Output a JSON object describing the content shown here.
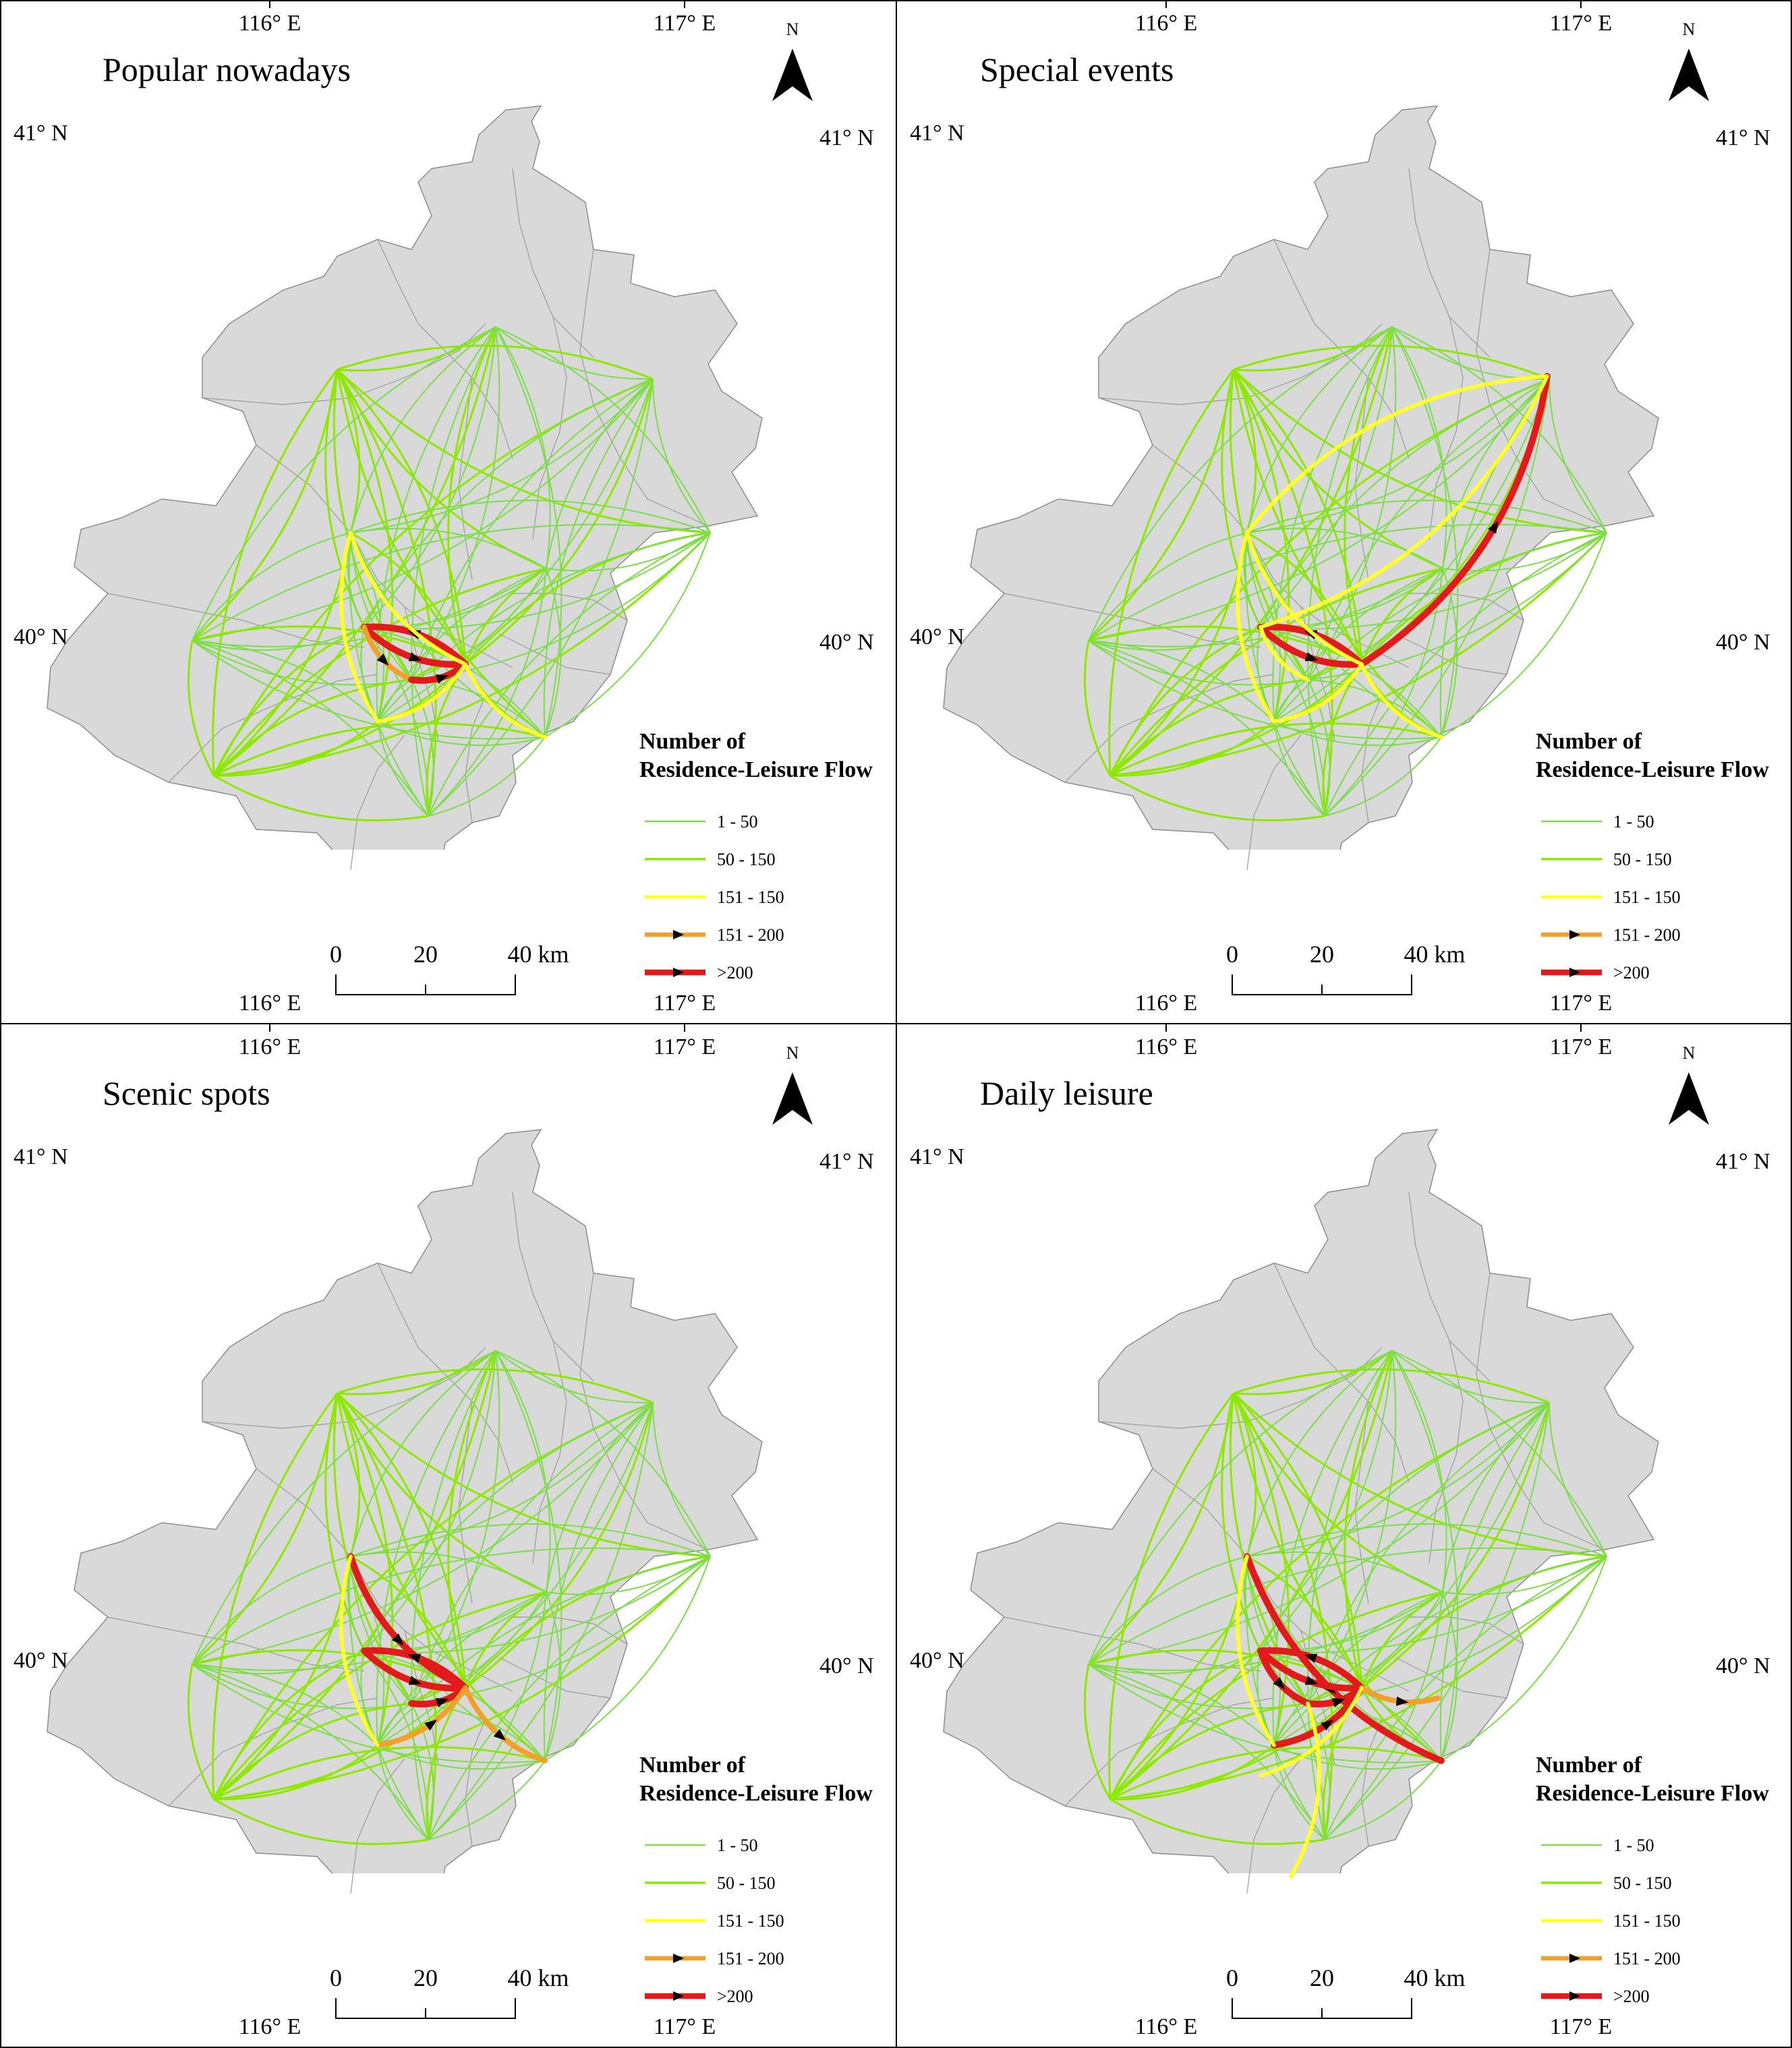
{
  "panels": [
    {
      "title": "Popular nowadays",
      "lon_labels": {
        "left": "116° E",
        "right": "117° E"
      },
      "lat_labels": {
        "top": "41° N",
        "middle": "40° N"
      },
      "north_label": "N",
      "legend_title_line1": "Number of",
      "legend_title_line2": "Residence-Leisure Flow",
      "legend_items": [
        "1 - 50",
        "50 - 150",
        "151 - 150",
        "151 - 200",
        ">200"
      ],
      "scale": {
        "t0": "0",
        "t1": "20",
        "t2": "40 km"
      },
      "major_flows": [
        {
          "from": "A",
          "to": "C",
          "class": 5
        },
        {
          "from": "C",
          "to": "A",
          "class": 5
        },
        {
          "from": "A",
          "to": "D",
          "class": 4
        },
        {
          "from": "D",
          "to": "C",
          "class": 5
        },
        {
          "from": "B",
          "to": "C",
          "class": 3
        },
        {
          "from": "C",
          "to": "F",
          "class": 3
        },
        {
          "from": "E",
          "to": "C",
          "class": 3
        },
        {
          "from": "B",
          "to": "E",
          "class": 3
        }
      ]
    },
    {
      "title": "Special events",
      "lon_labels": {
        "left": "116° E",
        "right": "117° E"
      },
      "lat_labels": {
        "top": "41° N",
        "middle": "40° N"
      },
      "north_label": "N",
      "legend_title_line1": "Number of",
      "legend_title_line2": "Residence-Leisure Flow",
      "legend_items": [
        "1 - 50",
        "50 - 150",
        "151 - 150",
        "151 - 200",
        ">200"
      ],
      "scale": {
        "t0": "0",
        "t1": "20",
        "t2": "40 km"
      },
      "major_flows": [
        {
          "from": "C",
          "to": "G",
          "class": 5
        },
        {
          "from": "A",
          "to": "C",
          "class": 5
        },
        {
          "from": "C",
          "to": "A",
          "class": 5
        },
        {
          "from": "B",
          "to": "C",
          "class": 3
        },
        {
          "from": "C",
          "to": "F",
          "class": 3
        },
        {
          "from": "B",
          "to": "E",
          "class": 3
        },
        {
          "from": "E",
          "to": "C",
          "class": 3
        },
        {
          "from": "G",
          "to": "B",
          "class": 3
        },
        {
          "from": "A",
          "to": "G",
          "class": 3
        },
        {
          "from": "A",
          "to": "D",
          "class": 3
        }
      ]
    },
    {
      "title": "Scenic spots",
      "lon_labels": {
        "left": "116° E",
        "right": "117° E"
      },
      "lat_labels": {
        "top": "41° N",
        "middle": "40° N"
      },
      "north_label": "N",
      "legend_title_line1": "Number of",
      "legend_title_line2": "Residence-Leisure Flow",
      "legend_items": [
        "1 - 50",
        "50 - 150",
        "151 - 150",
        "151 - 200",
        ">200"
      ],
      "scale": {
        "t0": "0",
        "t1": "20",
        "t2": "40 km"
      },
      "major_flows": [
        {
          "from": "B",
          "to": "C",
          "class": 5
        },
        {
          "from": "A",
          "to": "C",
          "class": 5
        },
        {
          "from": "C",
          "to": "A",
          "class": 5
        },
        {
          "from": "D",
          "to": "C",
          "class": 5
        },
        {
          "from": "C",
          "to": "F",
          "class": 4
        },
        {
          "from": "E",
          "to": "C",
          "class": 4
        },
        {
          "from": "B",
          "to": "E",
          "class": 3
        }
      ]
    },
    {
      "title": "Daily leisure",
      "lon_labels": {
        "left": "116° E",
        "right": "117° E"
      },
      "lat_labels": {
        "top": "41° N",
        "middle": "40° N"
      },
      "north_label": "N",
      "legend_title_line1": "Number of",
      "legend_title_line2": "Residence-Leisure Flow",
      "legend_items": [
        "1 - 50",
        "50 - 150",
        "151 - 150",
        "151 - 200",
        ">200"
      ],
      "scale": {
        "t0": "0",
        "t1": "20",
        "t2": "40 km"
      },
      "major_flows": [
        {
          "from": "B",
          "to": "F",
          "class": 5
        },
        {
          "from": "A",
          "to": "C",
          "class": 5
        },
        {
          "from": "C",
          "to": "A",
          "class": 5
        },
        {
          "from": "D",
          "to": "C",
          "class": 5
        },
        {
          "from": "E",
          "to": "C",
          "class": 5
        },
        {
          "from": "A",
          "to": "D",
          "class": 5
        },
        {
          "from": "C",
          "to": "H",
          "class": 4
        },
        {
          "from": "B",
          "to": "E",
          "class": 3
        },
        {
          "from": "J",
          "to": "C",
          "class": 3
        },
        {
          "from": "I",
          "to": "D",
          "class": 3
        }
      ]
    }
  ],
  "legend_colors": [
    "#7ddc4a",
    "#8ee800",
    "#ffff2a",
    "#f2a02a",
    "#e31a1c"
  ],
  "map_fill": "#d9d9d9"
}
